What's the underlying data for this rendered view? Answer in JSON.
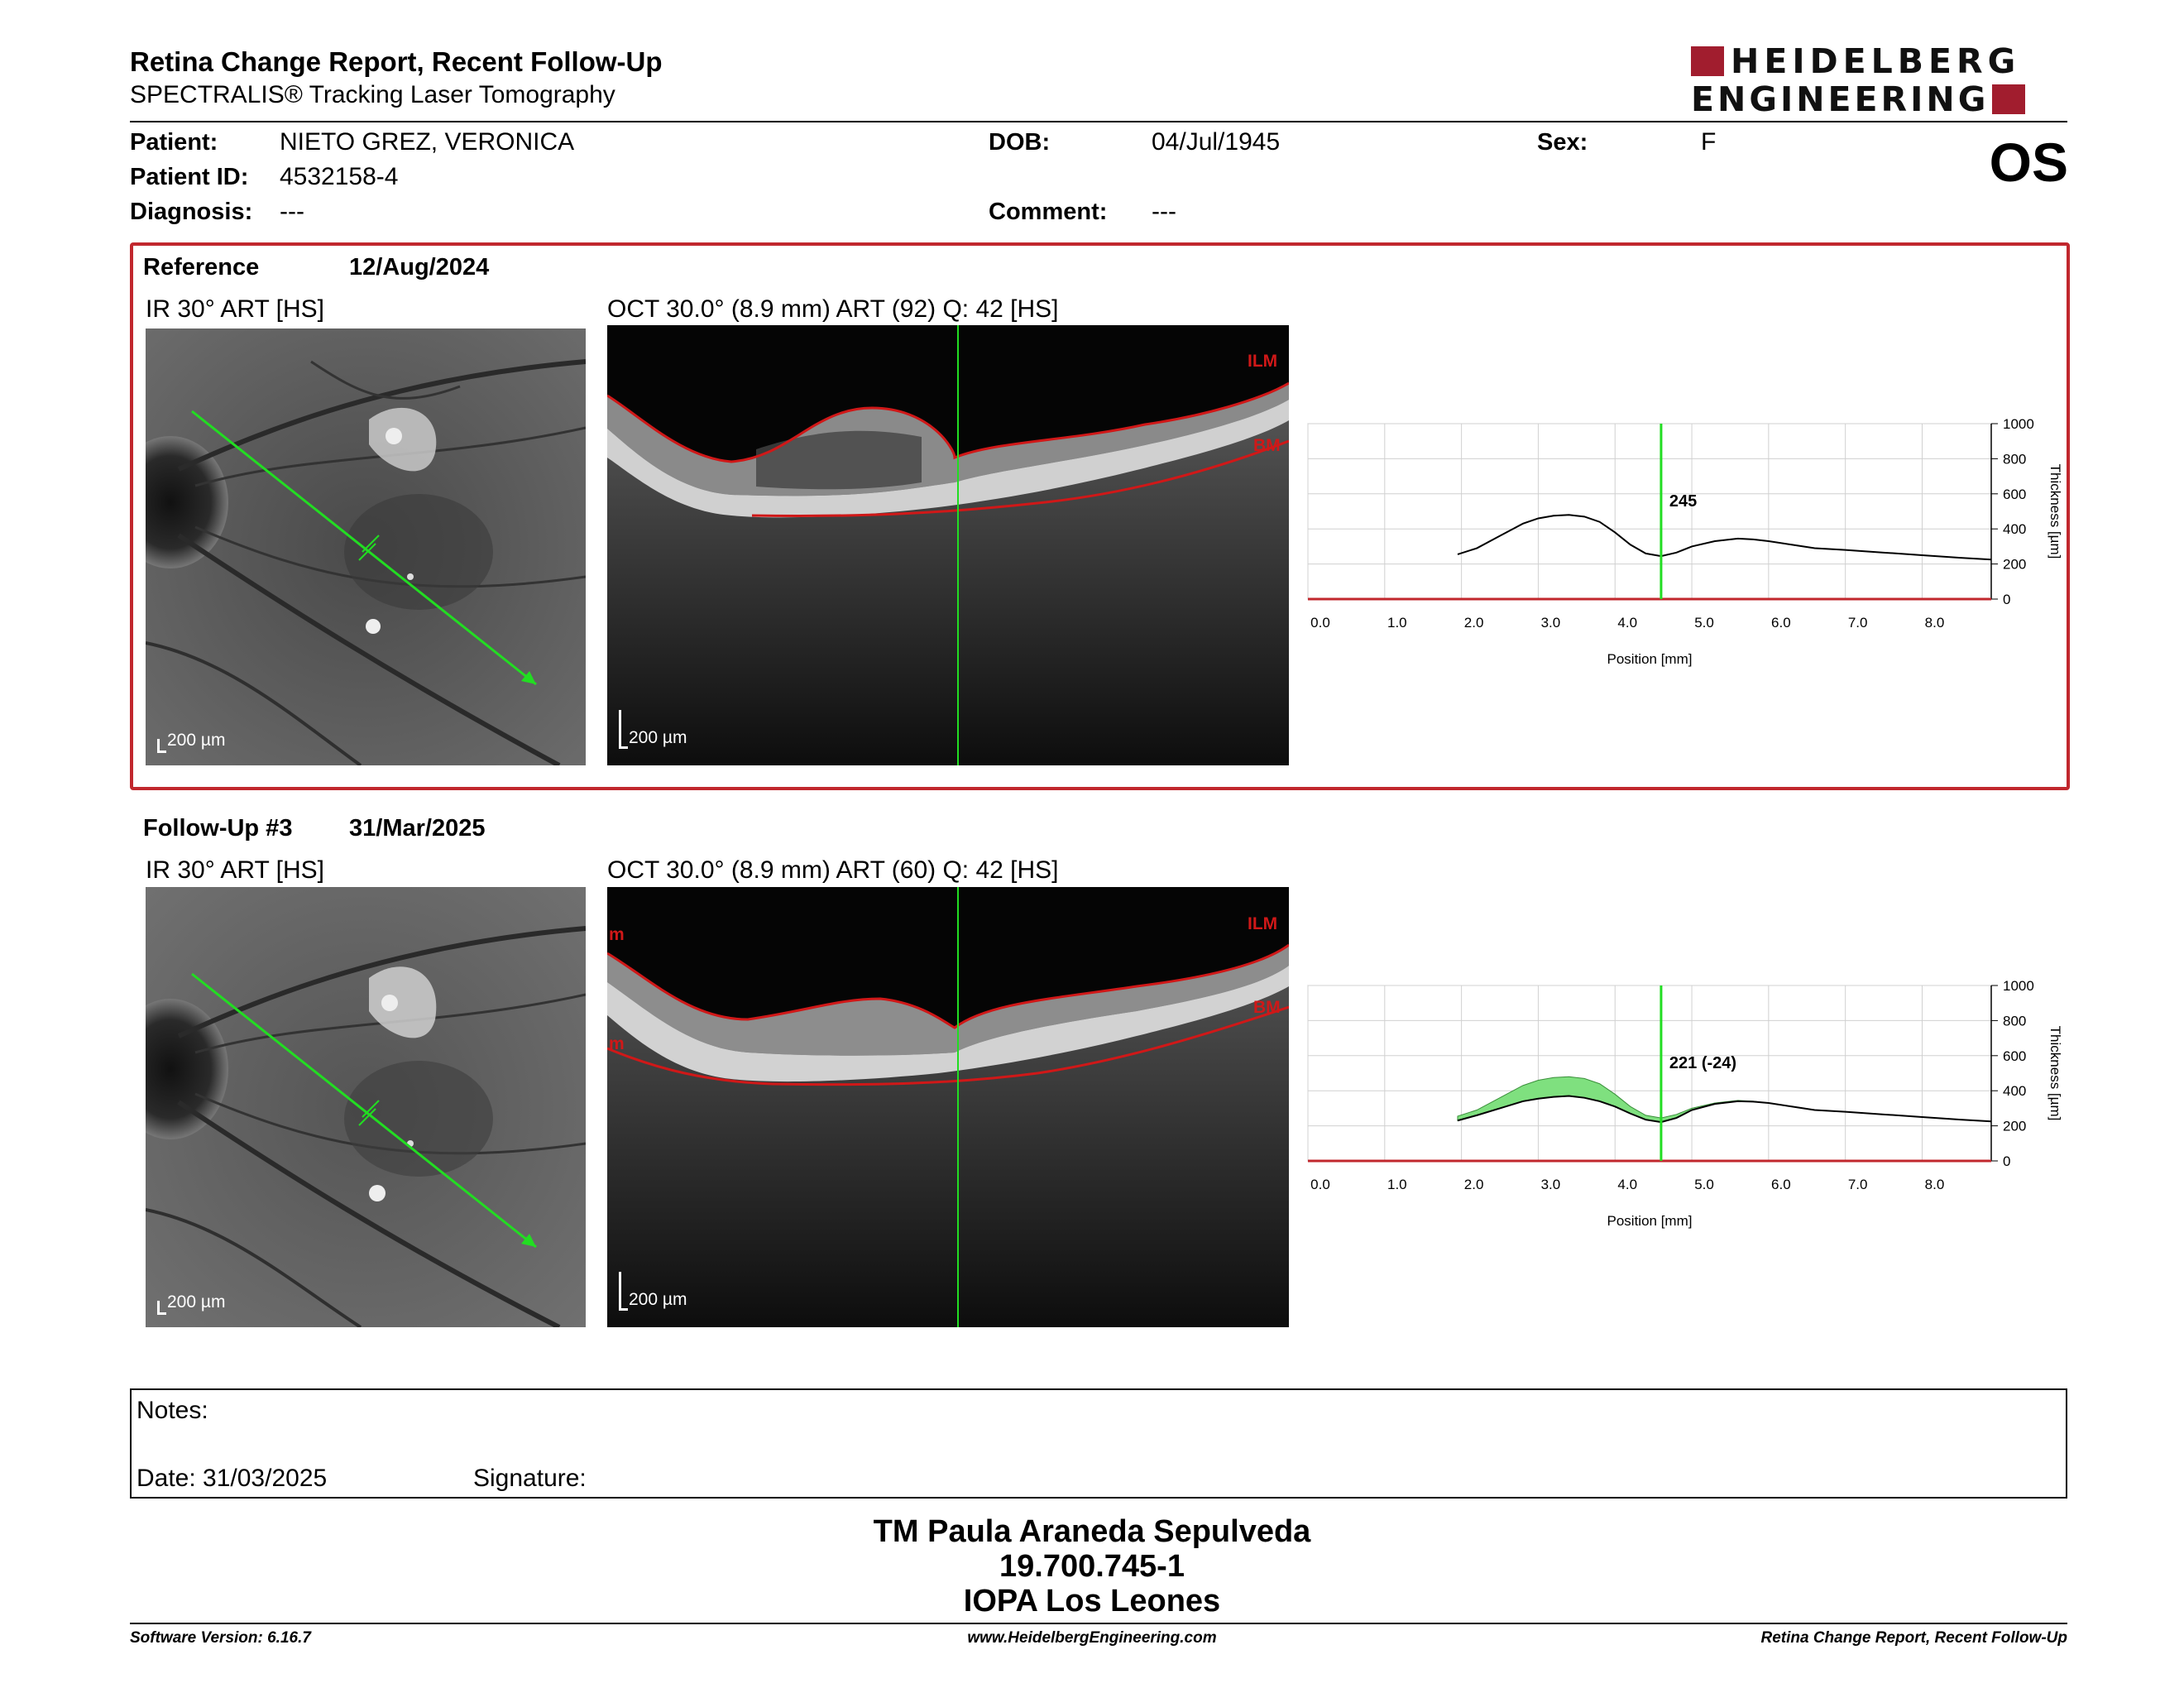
{
  "header": {
    "title": "Retina Change Report, Recent Follow-Up",
    "subtitle": "SPECTRALIS® Tracking Laser Tomography",
    "logo_line1": "HEIDELBERG",
    "logo_line2": "ENGINEERING",
    "eye": "OS"
  },
  "patient": {
    "name_label": "Patient:",
    "name": "NIETO GREZ, VERONICA",
    "id_label": "Patient ID:",
    "id": "4532158-4",
    "diagnosis_label": "Diagnosis:",
    "diagnosis": "---",
    "dob_label": "DOB:",
    "dob": "04/Jul/1945",
    "comment_label": "Comment:",
    "comment": "---",
    "sex_label": "Sex:",
    "sex": "F"
  },
  "reference": {
    "label": "Reference",
    "date": "12/Aug/2024",
    "ir_label": "IR 30° ART [HS]",
    "oct_label": "OCT 30.0° (8.9 mm) ART (92) Q: 42 [HS]",
    "scale_ir": "200 µm",
    "scale_oct": "200 µm",
    "ilm": "ILM",
    "bm": "BM"
  },
  "followup": {
    "label": "Follow-Up #3",
    "date": "31/Mar/2025",
    "ir_label": "IR 30° ART [HS]",
    "oct_label": "OCT 30.0° (8.9 mm) ART (60) Q: 42 [HS]",
    "scale_ir": "200 µm",
    "scale_oct": "200 µm",
    "ilm": "ILM",
    "bm": "BM",
    "edge_mark": "m"
  },
  "chart_data": [
    {
      "type": "line",
      "xlabel": "Position [mm]",
      "ylabel": "Thickness [µm]",
      "xlim": [
        0,
        8.9
      ],
      "ylim": [
        0,
        1000
      ],
      "x_ticks": [
        "0.0",
        "1.0",
        "2.0",
        "3.0",
        "4.0",
        "5.0",
        "6.0",
        "7.0",
        "8.0"
      ],
      "y_ticks": [
        "0",
        "200",
        "400",
        "600",
        "800",
        "1000"
      ],
      "cursor_x": 4.6,
      "cursor_label": "245",
      "grid": true,
      "series": [
        {
          "x": [
            1.95,
            2.2,
            2.5,
            2.8,
            3.0,
            3.2,
            3.4,
            3.6,
            3.8,
            4.0,
            4.2,
            4.4,
            4.6,
            4.8,
            5.0,
            5.3,
            5.6,
            5.8,
            6.0,
            6.3,
            6.6,
            7.0,
            7.5,
            8.0,
            8.5,
            8.9
          ],
          "values": [
            255,
            290,
            360,
            430,
            460,
            475,
            480,
            470,
            440,
            380,
            310,
            260,
            245,
            265,
            300,
            330,
            345,
            340,
            330,
            310,
            290,
            280,
            265,
            250,
            235,
            225
          ]
        }
      ]
    },
    {
      "type": "line",
      "xlabel": "Position [mm]",
      "ylabel": "Thickness [µm]",
      "xlim": [
        0,
        8.9
      ],
      "ylim": [
        0,
        1000
      ],
      "x_ticks": [
        "0.0",
        "1.0",
        "2.0",
        "3.0",
        "4.0",
        "5.0",
        "6.0",
        "7.0",
        "8.0"
      ],
      "y_ticks": [
        "0",
        "200",
        "400",
        "600",
        "800",
        "1000"
      ],
      "cursor_x": 4.6,
      "cursor_label": "221 (-24)",
      "grid": true,
      "change_fill": "#7fe07f",
      "series": [
        {
          "x": [
            1.95,
            2.2,
            2.5,
            2.8,
            3.0,
            3.2,
            3.4,
            3.6,
            3.8,
            4.0,
            4.2,
            4.4,
            4.6,
            4.8,
            5.0,
            5.3,
            5.6,
            5.8,
            6.0,
            6.3,
            6.6,
            7.0,
            7.5,
            8.0,
            8.5,
            8.9
          ],
          "values": [
            230,
            260,
            300,
            340,
            355,
            365,
            370,
            360,
            340,
            310,
            270,
            235,
            221,
            245,
            290,
            325,
            340,
            338,
            330,
            310,
            290,
            280,
            265,
            250,
            235,
            225
          ]
        }
      ]
    }
  ],
  "notes": {
    "label": "Notes:",
    "date_label": "Date: 31/03/2025",
    "signature_label": "Signature:"
  },
  "signature_block": {
    "line1": "TM Paula Araneda Sepulveda",
    "line2": "19.700.745-1",
    "line3": "IOPA Los Leones"
  },
  "footer": {
    "software": "Software Version: 6.16.7",
    "website": "www.HeidelbergEngineering.com",
    "report": "Retina Change Report, Recent Follow-Up"
  },
  "colors": {
    "frame_red": "#c1272d",
    "logo_red": "#a11d2e",
    "scan_green": "#22dd22",
    "layer_red": "#d01818"
  }
}
